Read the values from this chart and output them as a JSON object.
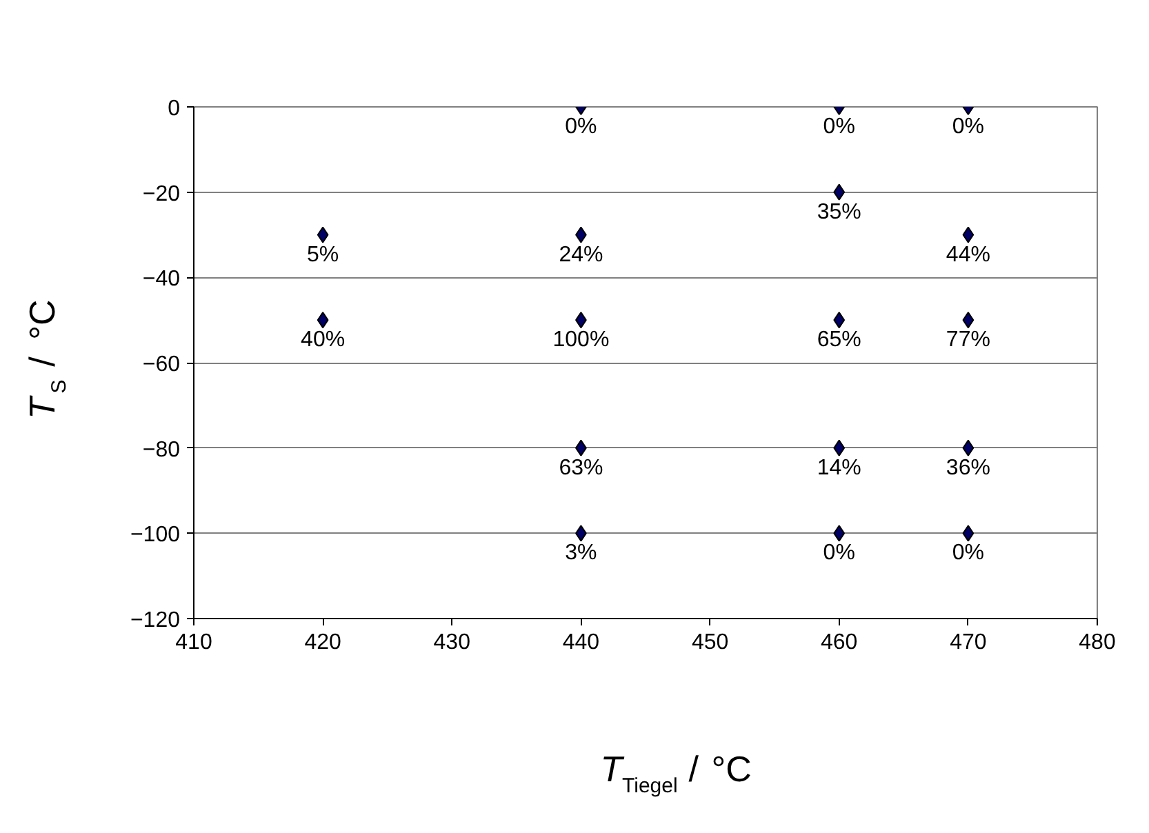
{
  "chart_data": {
    "type": "scatter",
    "xlabel": "T$_{Tiegel}$ / °C",
    "ylabel": "T$_{S}$ / °C",
    "x": [
      440,
      460,
      470,
      460,
      420,
      440,
      470,
      420,
      440,
      460,
      470,
      440,
      460,
      470,
      440,
      460,
      470
    ],
    "values": [
      0,
      0,
      0,
      -20,
      -30,
      -30,
      -30,
      -50,
      -50,
      -50,
      -50,
      -80,
      -80,
      -80,
      -100,
      -100,
      -100
    ],
    "annotations": [
      {
        "text": "0%",
        "x": 440,
        "y": 0
      },
      {
        "text": "0%",
        "x": 460,
        "y": 0
      },
      {
        "text": "0%",
        "x": 470,
        "y": 0
      },
      {
        "text": "35%",
        "x": 460,
        "y": -20
      },
      {
        "text": "5%",
        "x": 420,
        "y": -30
      },
      {
        "text": "24%",
        "x": 440,
        "y": -30
      },
      {
        "text": "44%",
        "x": 470,
        "y": -30
      },
      {
        "text": "40%",
        "x": 420,
        "y": -50
      },
      {
        "text": "100%",
        "x": 440,
        "y": -50
      },
      {
        "text": "65%",
        "x": 460,
        "y": -50
      },
      {
        "text": "77%",
        "x": 470,
        "y": -50
      },
      {
        "text": "63%",
        "x": 440,
        "y": -80
      },
      {
        "text": "14%",
        "x": 460,
        "y": -80
      },
      {
        "text": "36%",
        "x": 470,
        "y": -80
      },
      {
        "text": "3%",
        "x": 440,
        "y": -100
      },
      {
        "text": "0%",
        "x": 460,
        "y": -100
      },
      {
        "text": "0%",
        "x": 470,
        "y": -100
      }
    ],
    "color": "#000066",
    "marker": "diamond",
    "xlim": [
      410,
      480
    ],
    "xticks": [
      410,
      420,
      430,
      440,
      450,
      460,
      470,
      480
    ],
    "ylim": [
      -120,
      0
    ],
    "yticks": [
      -120,
      -100,
      -80,
      -60,
      -40,
      -20,
      0
    ],
    "grid": "y",
    "legend": false
  }
}
